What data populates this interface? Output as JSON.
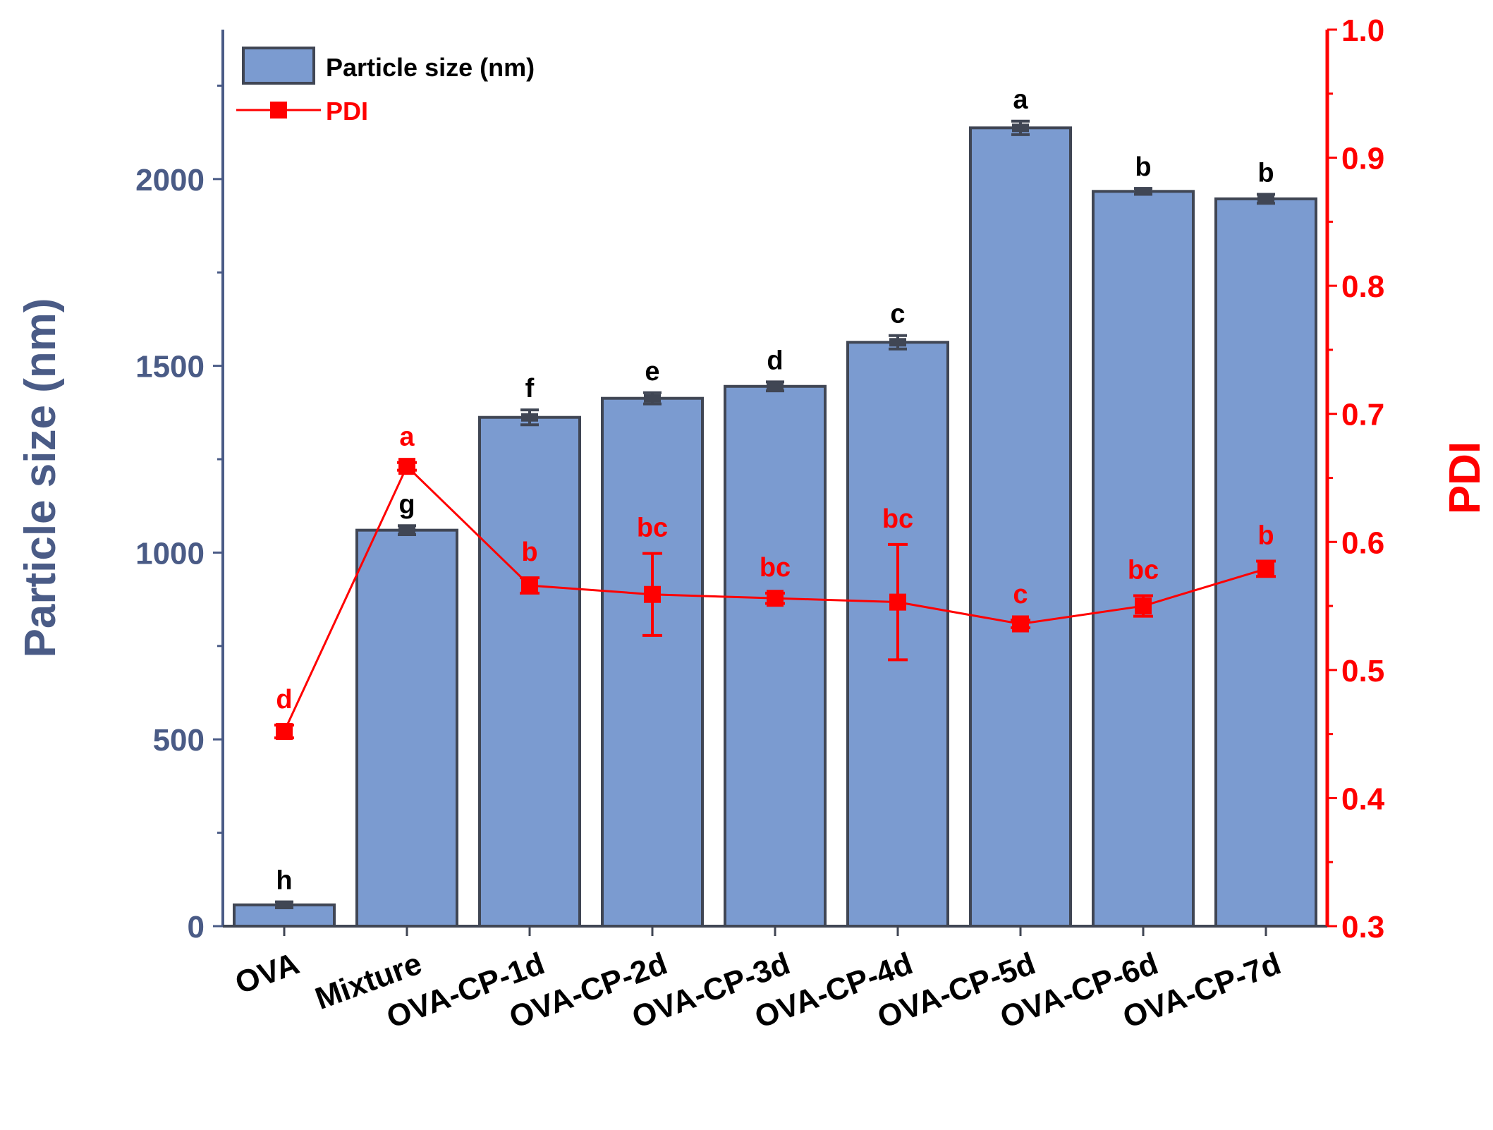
{
  "chart_data": {
    "type": "bar",
    "categories": [
      "OVA",
      "Mixture",
      "OVA-CP-1d",
      "OVA-CP-2d",
      "OVA-CP-3d",
      "OVA-CP-4d",
      "OVA-CP-5d",
      "OVA-CP-6d",
      "OVA-CP-7d"
    ],
    "series": [
      {
        "name": "Particle size (nm)",
        "type": "bar",
        "axis": "left",
        "values": [
          57,
          1060,
          1362,
          1413,
          1445,
          1563,
          2137,
          1967,
          1947
        ],
        "errors": [
          8,
          12,
          20,
          15,
          12,
          18,
          18,
          8,
          12
        ],
        "significance": [
          "h",
          "g",
          "f",
          "e",
          "d",
          "c",
          "a",
          "b",
          "b"
        ]
      },
      {
        "name": "PDI",
        "type": "line",
        "axis": "right",
        "values": [
          0.452,
          0.659,
          0.566,
          0.559,
          0.556,
          0.553,
          0.536,
          0.55,
          0.579
        ],
        "errors": [
          0.005,
          0.003,
          0.006,
          0.032,
          0.004,
          0.045,
          0.003,
          0.008,
          0.006
        ],
        "significance": [
          "d",
          "a",
          "b",
          "bc",
          "bc",
          "bc",
          "c",
          "bc",
          "b"
        ]
      }
    ],
    "ylabel": "Particle size (nm)",
    "y2label": "PDI",
    "ylim": [
      0,
      2400
    ],
    "y2lim": [
      0.3,
      1.0
    ],
    "yticks": [
      0,
      500,
      1000,
      1500,
      2000
    ],
    "y2ticks": [
      "0.3",
      "0.4",
      "0.5",
      "0.6",
      "0.7",
      "0.8",
      "0.9",
      "1.0"
    ],
    "legend_position": "top-left",
    "grid": false
  },
  "colors": {
    "bar_fill": "#7b9bd0",
    "bar_stroke": "#404654",
    "left_axis": "#4a5b86",
    "right_axis": "#ff0000",
    "errorbar": "#404654",
    "text": "#000000"
  }
}
